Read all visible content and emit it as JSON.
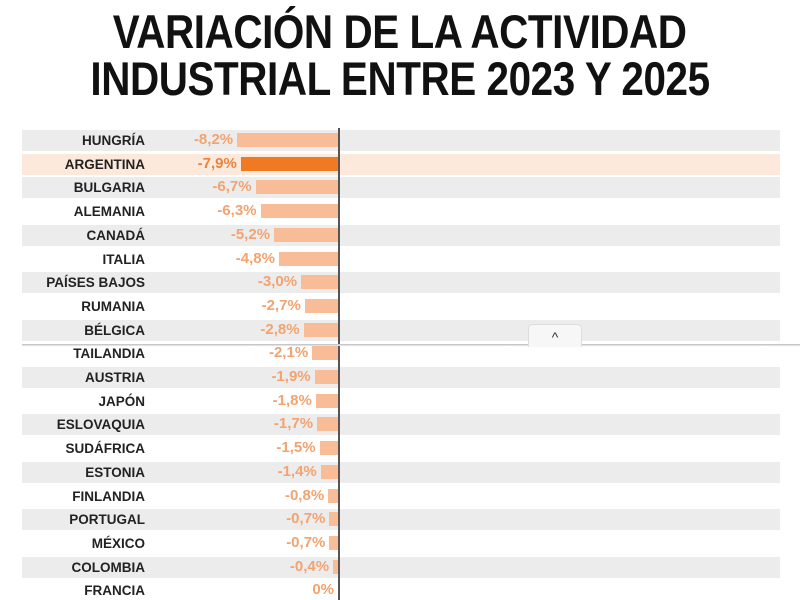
{
  "chart_data": {
    "type": "bar",
    "orientation": "horizontal",
    "title": "VARIACIÓN DE LA ACTIVIDAD INDUSTRIAL ENTRE 2023 Y 2025",
    "title_lines": [
      "VARIACIÓN DE LA ACTIVIDAD",
      "INDUSTRIAL ENTRE 2023 Y 2025"
    ],
    "categories": [
      "HUNGRÍA",
      "ARGENTINA",
      "BULGARIA",
      "ALEMANIA",
      "CANADÁ",
      "ITALIA",
      "PAÍSES BAJOS",
      "RUMANIA",
      "BÉLGICA",
      "TAILANDIA",
      "AUSTRIA",
      "JAPÓN",
      "ESLOVAQUIA",
      "SUDÁFRICA",
      "ESTONIA",
      "FINLANDIA",
      "PORTUGAL",
      "MÉXICO",
      "COLOMBIA",
      "FRANCIA"
    ],
    "values": [
      -8.2,
      -7.9,
      -6.7,
      -6.3,
      -5.2,
      -4.8,
      -3.0,
      -2.7,
      -2.8,
      -2.1,
      -1.9,
      -1.8,
      -1.7,
      -1.5,
      -1.4,
      -0.8,
      -0.7,
      -0.7,
      -0.4,
      0
    ],
    "value_labels": [
      "-8,2%",
      "-7,9%",
      "-6,7%",
      "-6,3%",
      "-5,2%",
      "-4,8%",
      "-3,0%",
      "-2,7%",
      "-2,8%",
      "-2,1%",
      "-1,9%",
      "-1,8%",
      "-1,7%",
      "-1,5%",
      "-1,4%",
      "-0,8%",
      "-0,7%",
      "-0,7%",
      "-0,4%",
      "0%"
    ],
    "highlight": "ARGENTINA",
    "colors": {
      "bar": "#f8bd96",
      "highlight_bar": "#f07a22",
      "highlight_row": "#fde9dc",
      "stripe": "#ececec",
      "value_text": "#f2a370"
    },
    "grid": false
  },
  "ui": {
    "scroll_top_icon": "chevron-up-icon",
    "scroll_top_glyph": "^"
  }
}
